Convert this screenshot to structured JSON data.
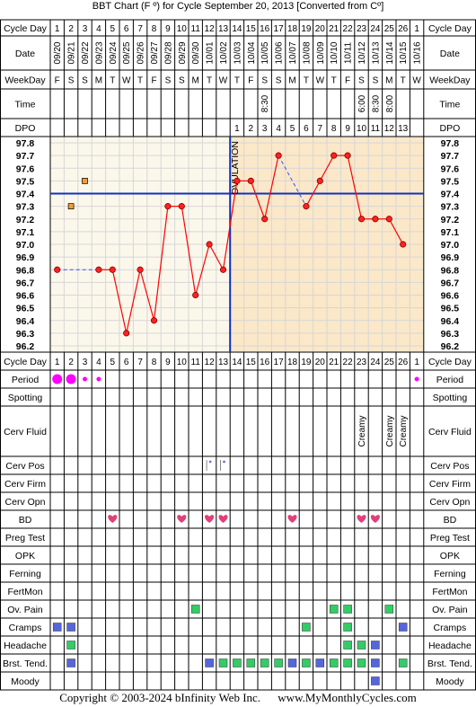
{
  "title": "BBT Chart (F º) for Cycle September 20, 2013  [Converted from Cº]",
  "copyright": "Copyright © 2003-2024 bInfinity Web Inc.",
  "website": "www.MyMonthlyCycles.com",
  "row_labels": {
    "cycle_day": "Cycle Day",
    "date": "Date",
    "weekday": "WeekDay",
    "time": "Time",
    "dpo": "DPO",
    "period": "Period",
    "spotting": "Spotting",
    "cerv_fluid": "Cerv Fluid",
    "cerv_pos": "Cerv Pos",
    "cerv_firm": "Cerv Firm",
    "cerv_opn": "Cerv Opn",
    "bd": "BD",
    "preg_test": "Preg Test",
    "opk": "OPK",
    "ferning": "Ferning",
    "fertmon": "FertMon",
    "ov_pain": "Ov. Pain",
    "cramps": "Cramps",
    "headache": "Headache",
    "brst_tend": "Brst. Tend.",
    "moody": "Moody"
  },
  "ovulation_label": "OVULATION",
  "colors": {
    "pre_bg": "#fbf8eb",
    "post_bg": "#fbe8c8",
    "grid": "#d6d6d6",
    "coverline": "#1030c0",
    "temp_line": "#ff0000",
    "marker_fill": "#ff2020",
    "period": "#ff00ff",
    "heart": "#e0407a",
    "symptom_green": "#33cc66",
    "symptom_blue": "#5566dd",
    "box_orange": "#f59a3c"
  },
  "chart_data": {
    "type": "line",
    "cycle_days": [
      "1",
      "2",
      "3",
      "4",
      "5",
      "6",
      "7",
      "8",
      "9",
      "10",
      "11",
      "12",
      "13",
      "14",
      "15",
      "16",
      "17",
      "18",
      "19",
      "20",
      "21",
      "22",
      "23",
      "24",
      "25",
      "26",
      "1"
    ],
    "dates": [
      "09/20",
      "09/21",
      "09/22",
      "09/23",
      "09/24",
      "09/25",
      "09/26",
      "09/27",
      "09/28",
      "09/29",
      "09/30",
      "10/01",
      "10/02",
      "10/03",
      "10/04",
      "10/05",
      "10/06",
      "10/07",
      "10/08",
      "10/09",
      "10/10",
      "10/11",
      "10/12",
      "10/13",
      "10/14",
      "10/15",
      "10/16"
    ],
    "weekdays": [
      "F",
      "S",
      "S",
      "M",
      "T",
      "W",
      "T",
      "F",
      "S",
      "S",
      "M",
      "T",
      "W",
      "T",
      "F",
      "S",
      "S",
      "M",
      "T",
      "W",
      "T",
      "F",
      "S",
      "S",
      "M",
      "T",
      "W"
    ],
    "times": [
      "",
      "",
      "",
      "",
      "",
      "",
      "",
      "",
      "",
      "",
      "",
      "",
      "",
      "",
      "",
      "8:30",
      "",
      "",
      "",
      "",
      "",
      "",
      "6:00",
      "8:30",
      "8:00",
      "",
      ""
    ],
    "dpo": [
      "",
      "",
      "",
      "",
      "",
      "",
      "",
      "",
      "",
      "",
      "",
      "",
      "",
      "1",
      "2",
      "3",
      "4",
      "5",
      "6",
      "7",
      "8",
      "9",
      "10",
      "11",
      "12",
      "13",
      ""
    ],
    "temperatures": [
      96.8,
      null,
      null,
      96.8,
      96.8,
      96.3,
      96.8,
      96.4,
      97.3,
      97.3,
      96.6,
      97.0,
      96.8,
      97.5,
      97.5,
      97.2,
      97.7,
      null,
      97.3,
      97.5,
      97.7,
      97.7,
      97.2,
      97.2,
      97.2,
      97.0,
      null
    ],
    "dashed_gaps": [
      [
        0,
        3
      ],
      [
        16,
        18
      ]
    ],
    "ylim": [
      96.2,
      97.8
    ],
    "yticks": [
      97.8,
      97.7,
      97.6,
      97.5,
      97.4,
      97.3,
      97.2,
      97.1,
      97.0,
      96.9,
      96.8,
      96.7,
      96.6,
      96.5,
      96.4,
      96.3,
      96.2
    ],
    "ytick_labels": [
      "97.8",
      "97.7",
      "97.6",
      "97.5",
      "97.4",
      "97.3",
      "97.2",
      "97.1",
      "97.0",
      "96.9",
      "96.8",
      "96.7",
      "96.6",
      "96.5",
      "96.4",
      "96.3",
      "96.2"
    ],
    "coverline": 97.4,
    "ovulation_day_index": 12,
    "excluded_temps": [
      {
        "day": 1,
        "value": 97.3
      },
      {
        "day": 2,
        "value": 97.5
      }
    ],
    "period": [
      2,
      2,
      1,
      1,
      0,
      0,
      0,
      0,
      0,
      0,
      0,
      0,
      0,
      0,
      0,
      0,
      0,
      0,
      0,
      0,
      0,
      0,
      0,
      0,
      0,
      0,
      1
    ],
    "cerv_fluid": [
      "",
      "",
      "",
      "",
      "",
      "",
      "",
      "",
      "",
      "",
      "",
      "",
      "",
      "",
      "",
      "",
      "",
      "",
      "",
      "",
      "",
      "",
      "Creamy",
      "",
      "Creamy",
      "Creamy",
      ""
    ],
    "cerv_pos_days": [
      11,
      12
    ],
    "bd_days": [
      4,
      9,
      11,
      12,
      17,
      22,
      23
    ],
    "ov_pain_days": [
      10,
      20,
      21,
      24
    ],
    "cramps": {
      "blue": [
        0,
        1,
        25
      ],
      "green": [
        18,
        21
      ]
    },
    "headache": {
      "green": [
        1,
        21,
        22
      ],
      "blue": [
        23
      ]
    },
    "brst_tend": {
      "blue": [
        1,
        11,
        17,
        19,
        23
      ],
      "green": [
        12,
        13,
        14,
        15,
        16,
        18,
        20,
        21,
        22,
        25
      ]
    },
    "moody_days": [
      23
    ]
  }
}
